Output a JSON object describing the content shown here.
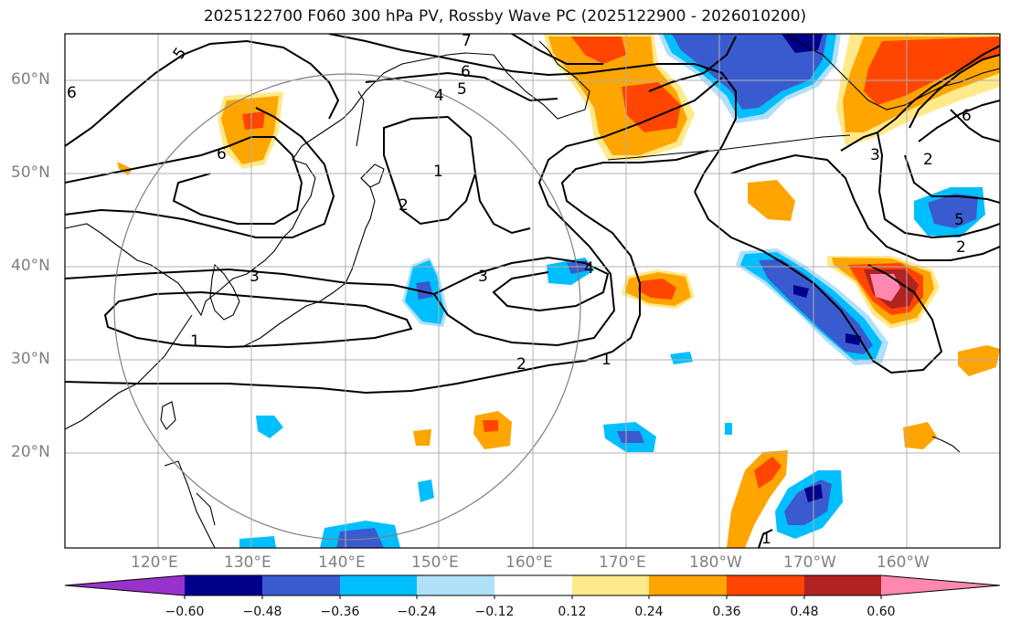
{
  "title": "2025122700 F060 300 hPa PV, Rossby Wave PC (2025122900 - 2026010200)",
  "lat_labels": [
    "60°N",
    "50°N",
    "40°N",
    "30°N",
    "20°N"
  ],
  "lon_labels": [
    "120°E",
    "130°E",
    "140°E",
    "150°E",
    "160°E",
    "170°E",
    "180°W",
    "170°W",
    "160°W"
  ],
  "contour_labels": [
    "5",
    "6",
    "5",
    "4",
    "6",
    "6",
    "1",
    "2",
    "3",
    "3",
    "4",
    "1",
    "2",
    "1",
    "2",
    "3",
    "2",
    "5",
    "6",
    "1",
    "7"
  ],
  "colorbar": {
    "labels": [
      "−0.60",
      "−0.48",
      "−0.36",
      "−0.24",
      "−0.12",
      "0.12",
      "0.24",
      "0.36",
      "0.48",
      "0.60"
    ],
    "colors": [
      "#9932cc",
      "#00008b",
      "#3a5bd0",
      "#00bfff",
      "#b0e0fa",
      "#ffffff",
      "#ffe98a",
      "#ffa500",
      "#ff4500",
      "#b22222",
      "#ff88b0"
    ]
  },
  "fill_colors": {
    "pos_low": "#ffe98a",
    "pos1": "#ffa500",
    "pos2": "#ff4500",
    "pos3": "#b22222",
    "pos4": "#ff88b0",
    "neg_low": "#b0e0fa",
    "neg1": "#00bfff",
    "neg2": "#3a5bd0",
    "neg3": "#00008b"
  }
}
